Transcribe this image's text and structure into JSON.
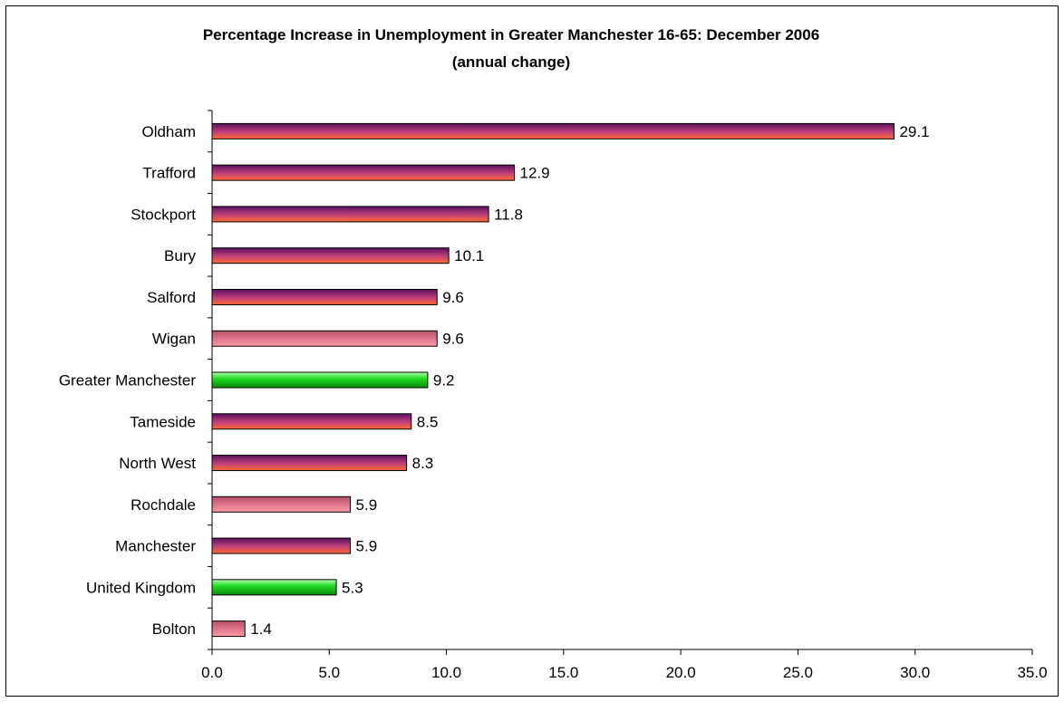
{
  "chart_data": {
    "type": "bar",
    "orientation": "horizontal",
    "title": "Percentage Increase in Unemployment in Greater Manchester 16-65: December 2006",
    "subtitle": "(annual change)",
    "xlabel": "",
    "ylabel": "",
    "xlim": [
      0,
      35
    ],
    "x_ticks": [
      "0.0",
      "5.0",
      "10.0",
      "15.0",
      "20.0",
      "25.0",
      "30.0",
      "35.0"
    ],
    "grid": false,
    "legend": "none",
    "categories": [
      "Oldham",
      "Trafford",
      "Stockport",
      "Bury",
      "Salford",
      "Wigan",
      "Greater Manchester",
      "Tameside",
      "North West",
      "Rochdale",
      "Manchester",
      "United Kingdom",
      "Bolton"
    ],
    "values": [
      29.1,
      12.9,
      11.8,
      10.1,
      9.6,
      9.6,
      9.2,
      8.5,
      8.3,
      5.9,
      5.9,
      5.3,
      1.4
    ],
    "value_labels": [
      "29.1",
      "12.9",
      "11.8",
      "10.1",
      "9.6",
      "9.6",
      "9.2",
      "8.5",
      "8.3",
      "5.9",
      "5.9",
      "5.3",
      "1.4"
    ],
    "bar_styles": [
      "purple-orange",
      "purple-orange",
      "purple-orange",
      "purple-orange",
      "purple-orange",
      "pink",
      "green",
      "purple-orange",
      "purple-orange",
      "pink",
      "purple-orange",
      "green",
      "pink"
    ],
    "colors": {
      "purple_top": "#5a1060",
      "purple_mid": "#c0407a",
      "orange_bottom": "#ff6a30",
      "pink_top": "#b8506a",
      "pink_bottom": "#ff9aa8",
      "green_top": "#b0ffb0",
      "green_mid": "#22dd22",
      "green_bottom": "#0a8a0a",
      "axis": "#000000",
      "text": "#000000"
    }
  }
}
